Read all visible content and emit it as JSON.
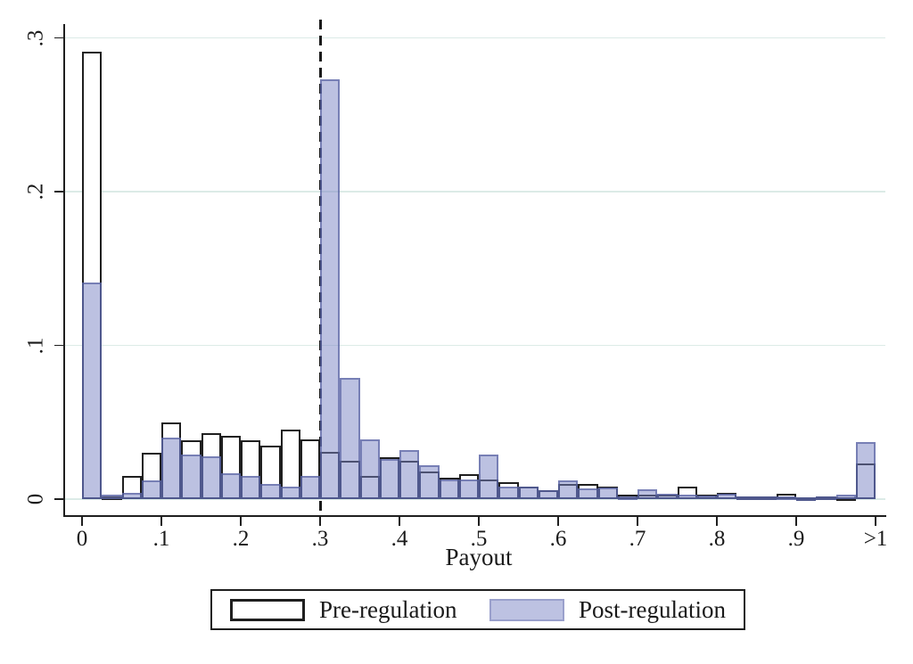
{
  "colors": {
    "pre_fill": "#ffffff",
    "pre_border": "#1f1f1f",
    "post_fill_over_white": "#bdc2e2",
    "post_border": "#9aa0cc",
    "gridline": "#dcebe7",
    "vline": "#1a1a1a",
    "text": "#1a1a1a"
  },
  "chart_data": {
    "type": "bar",
    "subtype": "overlaid-histogram",
    "title": "",
    "xlabel": "Payout",
    "ylabel": "",
    "xlim": [
      0,
      1.0
    ],
    "ylim": [
      0,
      0.3
    ],
    "grid": "horizontal",
    "legend_position": "bottom",
    "x_ticks": [
      "0",
      ".1",
      ".2",
      ".3",
      ".4",
      ".5",
      ".6",
      ".7",
      ".8",
      ".9",
      ">1"
    ],
    "x_tick_values": [
      0,
      0.1,
      0.2,
      0.3,
      0.4,
      0.5,
      0.6,
      0.7,
      0.8,
      0.9,
      1.0
    ],
    "y_ticks": [
      "0",
      ".1",
      ".2",
      ".3"
    ],
    "y_tick_values": [
      0,
      0.1,
      0.2,
      0.3
    ],
    "bin_width": 0.025,
    "bin_start": [
      0,
      0.025,
      0.05,
      0.075,
      0.1,
      0.125,
      0.15,
      0.175,
      0.2,
      0.225,
      0.25,
      0.275,
      0.3,
      0.325,
      0.35,
      0.375,
      0.4,
      0.425,
      0.45,
      0.475,
      0.5,
      0.525,
      0.55,
      0.575,
      0.6,
      0.625,
      0.65,
      0.675,
      0.7,
      0.725,
      0.75,
      0.775,
      0.8,
      0.825,
      0.85,
      0.875,
      0.9,
      0.925,
      0.95,
      0.975
    ],
    "vline": {
      "x": 0.3,
      "style": "dashed"
    },
    "series": [
      {
        "name": "Pre-regulation",
        "style": "white-outlined",
        "values": [
          0.291,
          0.002,
          0.015,
          0.03,
          0.05,
          0.038,
          0.043,
          0.041,
          0.038,
          0.035,
          0.045,
          0.039,
          0.031,
          0.025,
          0.015,
          0.027,
          0.025,
          0.018,
          0.014,
          0.016,
          0.013,
          0.011,
          0.008,
          0.006,
          0.01,
          0.01,
          0.008,
          0.003,
          0.003,
          0.003,
          0.008,
          0.003,
          0.004,
          0.002,
          0.0015,
          0.0035,
          0.001,
          0.0015,
          0.001,
          0.023
        ]
      },
      {
        "name": "Post-regulation",
        "style": "lavender-filled",
        "values": [
          0.141,
          0.003,
          0.004,
          0.012,
          0.04,
          0.029,
          0.028,
          0.017,
          0.015,
          0.01,
          0.008,
          0.015,
          0.273,
          0.079,
          0.039,
          0.026,
          0.032,
          0.022,
          0.013,
          0.013,
          0.029,
          0.008,
          0.008,
          0.006,
          0.012,
          0.007,
          0.0075,
          0.002,
          0.0065,
          0.0035,
          0.003,
          0.0025,
          0.0035,
          0.002,
          0.0015,
          0.002,
          0.001,
          0.0015,
          0.003,
          0.037
        ]
      }
    ]
  }
}
